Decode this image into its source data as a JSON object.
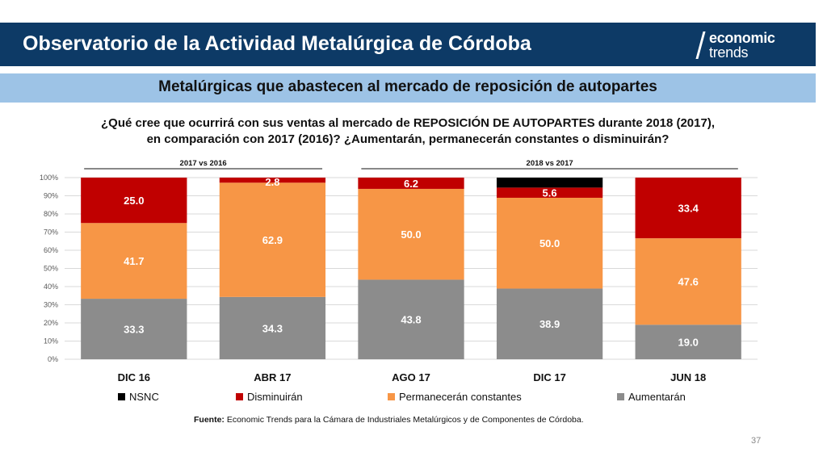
{
  "header": {
    "title": "Observatorio de la Actividad Metalúrgica de Córdoba"
  },
  "logo": {
    "line1": "economic",
    "line2": "trends"
  },
  "subheader": {
    "title": "Metalúrgicas que abastecen al mercado de reposición de autopartes"
  },
  "question": {
    "line1": "¿Qué cree que ocurrirá con sus ventas al mercado de REPOSICIÓN DE AUTOPARTES durante 2018 (2017),",
    "line2": "en comparación con 2017 (2016)? ¿Aumentarán, permanecerán constantes o disminuirán?"
  },
  "chart_data": {
    "type": "bar",
    "stacked": true,
    "normalized_percent": true,
    "categories": [
      "DIC 16",
      "ABR 17",
      "AGO 17",
      "DIC 17",
      "JUN 18"
    ],
    "series": [
      {
        "name": "Aumentarán",
        "values": [
          33.3,
          34.3,
          43.8,
          38.9,
          19.0
        ],
        "labels": [
          "33.3",
          "34.3",
          "43.8",
          "38.9",
          "19.0"
        ],
        "color": "#8c8c8c"
      },
      {
        "name": "Permanecerán constantes",
        "values": [
          41.7,
          62.9,
          50.0,
          50.0,
          47.6
        ],
        "labels": [
          "41.7",
          "62.9",
          "50.0",
          "50.0",
          "47.6"
        ],
        "color": "#f79646"
      },
      {
        "name": "Disminuirán",
        "values": [
          25.0,
          2.8,
          6.2,
          5.6,
          33.4
        ],
        "labels": [
          "25.0",
          "2.8",
          "6.2",
          "5.6",
          "33.4"
        ],
        "color": "#c00000"
      },
      {
        "name": "NSNC",
        "values": [
          0,
          0,
          0,
          5.5,
          0
        ],
        "labels": [
          "",
          "",
          "",
          "",
          ""
        ],
        "color": "#000000"
      }
    ],
    "legend_order": [
      "NSNC",
      "Disminuirán",
      "Permanecerán constantes",
      "Aumentarán"
    ],
    "yticks": [
      "0%",
      "10%",
      "20%",
      "30%",
      "40%",
      "50%",
      "60%",
      "70%",
      "80%",
      "90%",
      "100%"
    ],
    "ylim": [
      0,
      100
    ],
    "grid": true,
    "legend_position": "bottom",
    "group_labels": [
      "2017 vs 2016",
      "2018 vs 2017"
    ]
  },
  "source": {
    "label": "Fuente:",
    "text": " Economic Trends para la Cámara de Industriales Metalúrgicos y de Componentes de Córdoba."
  },
  "page_number": "37"
}
